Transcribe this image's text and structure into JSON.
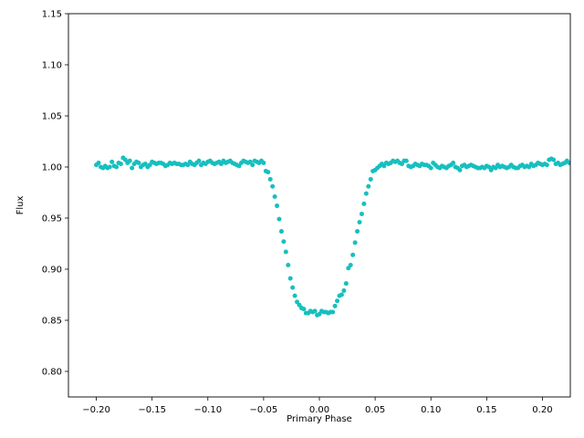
{
  "chart_data": {
    "type": "scatter",
    "title": "",
    "xlabel": "Primary Phase",
    "ylabel": "Flux",
    "xlim": [
      -0.225,
      0.225
    ],
    "ylim": [
      0.775,
      1.15
    ],
    "xticks": [
      -0.2,
      -0.15,
      -0.1,
      -0.05,
      0.0,
      0.05,
      0.1,
      0.15,
      0.2
    ],
    "xtick_labels": [
      "−0.20",
      "−0.15",
      "−0.10",
      "−0.05",
      "0.00",
      "0.05",
      "0.10",
      "0.15",
      "0.20"
    ],
    "yticks": [
      0.8,
      0.85,
      0.9,
      0.95,
      1.0,
      1.05,
      1.1,
      1.15
    ],
    "ytick_labels": [
      "0.80",
      "0.85",
      "0.90",
      "0.95",
      "1.00",
      "1.05",
      "1.10",
      "1.15"
    ],
    "grid": false,
    "series": [
      {
        "color": "#17bfbf",
        "points": [
          [
            -0.2,
            1.002
          ],
          [
            -0.198,
            1.004
          ],
          [
            -0.196,
            1.0
          ],
          [
            -0.194,
            0.999
          ],
          [
            -0.192,
            1.001
          ],
          [
            -0.19,
            0.999
          ],
          [
            -0.188,
            1.0
          ],
          [
            -0.186,
            1.005
          ],
          [
            -0.184,
            1.001
          ],
          [
            -0.182,
            1.0
          ],
          [
            -0.18,
            1.004
          ],
          [
            -0.178,
            1.003
          ],
          [
            -0.176,
            1.009
          ],
          [
            -0.174,
            1.007
          ],
          [
            -0.172,
            1.004
          ],
          [
            -0.17,
            1.006
          ],
          [
            -0.168,
            0.999
          ],
          [
            -0.166,
            1.003
          ],
          [
            -0.164,
            1.005
          ],
          [
            -0.162,
            1.004
          ],
          [
            -0.16,
            1.0
          ],
          [
            -0.158,
            1.002
          ],
          [
            -0.156,
            1.003
          ],
          [
            -0.154,
            1.0
          ],
          [
            -0.152,
            1.002
          ],
          [
            -0.15,
            1.005
          ],
          [
            -0.148,
            1.004
          ],
          [
            -0.146,
            1.003
          ],
          [
            -0.144,
            1.004
          ],
          [
            -0.142,
            1.004
          ],
          [
            -0.14,
            1.003
          ],
          [
            -0.138,
            1.001
          ],
          [
            -0.136,
            1.002
          ],
          [
            -0.134,
            1.004
          ],
          [
            -0.132,
            1.003
          ],
          [
            -0.13,
            1.004
          ],
          [
            -0.128,
            1.003
          ],
          [
            -0.126,
            1.003
          ],
          [
            -0.124,
            1.002
          ],
          [
            -0.122,
            1.002
          ],
          [
            -0.12,
            1.003
          ],
          [
            -0.118,
            1.002
          ],
          [
            -0.116,
            1.005
          ],
          [
            -0.114,
            1.003
          ],
          [
            -0.112,
            1.002
          ],
          [
            -0.11,
            1.004
          ],
          [
            -0.108,
            1.006
          ],
          [
            -0.106,
            1.002
          ],
          [
            -0.104,
            1.004
          ],
          [
            -0.102,
            1.003
          ],
          [
            -0.1,
            1.005
          ],
          [
            -0.098,
            1.006
          ],
          [
            -0.096,
            1.004
          ],
          [
            -0.094,
            1.003
          ],
          [
            -0.092,
            1.004
          ],
          [
            -0.09,
            1.005
          ],
          [
            -0.088,
            1.003
          ],
          [
            -0.086,
            1.006
          ],
          [
            -0.084,
            1.004
          ],
          [
            -0.082,
            1.005
          ],
          [
            -0.08,
            1.006
          ],
          [
            -0.078,
            1.004
          ],
          [
            -0.076,
            1.003
          ],
          [
            -0.074,
            1.002
          ],
          [
            -0.072,
            1.001
          ],
          [
            -0.07,
            1.004
          ],
          [
            -0.068,
            1.006
          ],
          [
            -0.066,
            1.005
          ],
          [
            -0.064,
            1.004
          ],
          [
            -0.062,
            1.005
          ],
          [
            -0.06,
            1.002
          ],
          [
            -0.058,
            1.006
          ],
          [
            -0.056,
            1.005
          ],
          [
            -0.054,
            1.004
          ],
          [
            -0.052,
            1.006
          ],
          [
            -0.05,
            1.004
          ],
          [
            -0.048,
            0.996
          ],
          [
            -0.046,
            0.995
          ],
          [
            -0.044,
            0.988
          ],
          [
            -0.042,
            0.981
          ],
          [
            -0.04,
            0.971
          ],
          [
            -0.038,
            0.962
          ],
          [
            -0.036,
            0.949
          ],
          [
            -0.034,
            0.937
          ],
          [
            -0.032,
            0.927
          ],
          [
            -0.03,
            0.917
          ],
          [
            -0.028,
            0.904
          ],
          [
            -0.026,
            0.891
          ],
          [
            -0.024,
            0.882
          ],
          [
            -0.022,
            0.874
          ],
          [
            -0.02,
            0.868
          ],
          [
            -0.018,
            0.865
          ],
          [
            -0.016,
            0.862
          ],
          [
            -0.014,
            0.861
          ],
          [
            -0.012,
            0.857
          ],
          [
            -0.01,
            0.857
          ],
          [
            -0.008,
            0.859
          ],
          [
            -0.006,
            0.858
          ],
          [
            -0.004,
            0.859
          ],
          [
            -0.002,
            0.855
          ],
          [
            0.0,
            0.856
          ],
          [
            0.002,
            0.859
          ],
          [
            0.004,
            0.858
          ],
          [
            0.006,
            0.858
          ],
          [
            0.008,
            0.857
          ],
          [
            0.01,
            0.858
          ],
          [
            0.012,
            0.858
          ],
          [
            0.014,
            0.864
          ],
          [
            0.016,
            0.869
          ],
          [
            0.018,
            0.874
          ],
          [
            0.02,
            0.875
          ],
          [
            0.022,
            0.879
          ],
          [
            0.024,
            0.886
          ],
          [
            0.026,
            0.901
          ],
          [
            0.028,
            0.904
          ],
          [
            0.03,
            0.914
          ],
          [
            0.032,
            0.926
          ],
          [
            0.034,
            0.937
          ],
          [
            0.036,
            0.946
          ],
          [
            0.038,
            0.954
          ],
          [
            0.04,
            0.964
          ],
          [
            0.042,
            0.974
          ],
          [
            0.044,
            0.981
          ],
          [
            0.046,
            0.988
          ],
          [
            0.048,
            0.996
          ],
          [
            0.05,
            0.997
          ],
          [
            0.052,
            0.999
          ],
          [
            0.054,
            1.001
          ],
          [
            0.056,
            1.003
          ],
          [
            0.058,
            1.001
          ],
          [
            0.06,
            1.004
          ],
          [
            0.062,
            1.003
          ],
          [
            0.064,
            1.004
          ],
          [
            0.066,
            1.006
          ],
          [
            0.068,
            1.005
          ],
          [
            0.07,
            1.006
          ],
          [
            0.072,
            1.004
          ],
          [
            0.074,
            1.003
          ],
          [
            0.076,
            1.006
          ],
          [
            0.078,
            1.006
          ],
          [
            0.08,
            1.001
          ],
          [
            0.082,
            1.0
          ],
          [
            0.084,
            1.001
          ],
          [
            0.086,
            1.003
          ],
          [
            0.088,
            1.002
          ],
          [
            0.09,
            1.001
          ],
          [
            0.092,
            1.003
          ],
          [
            0.094,
            1.002
          ],
          [
            0.096,
            1.002
          ],
          [
            0.098,
            1.001
          ],
          [
            0.1,
            0.999
          ],
          [
            0.102,
            1.004
          ],
          [
            0.104,
            1.002
          ],
          [
            0.106,
            1.0
          ],
          [
            0.108,
            0.999
          ],
          [
            0.11,
            1.001
          ],
          [
            0.112,
            1.0
          ],
          [
            0.114,
            0.999
          ],
          [
            0.116,
            1.001
          ],
          [
            0.118,
            1.002
          ],
          [
            0.12,
            1.004
          ],
          [
            0.122,
            1.0
          ],
          [
            0.124,
            0.999
          ],
          [
            0.126,
            0.997
          ],
          [
            0.128,
            1.001
          ],
          [
            0.13,
            1.002
          ],
          [
            0.132,
            1.0
          ],
          [
            0.134,
            1.001
          ],
          [
            0.136,
            1.002
          ],
          [
            0.138,
            1.001
          ],
          [
            0.14,
            1.0
          ],
          [
            0.142,
            0.999
          ],
          [
            0.144,
            0.999
          ],
          [
            0.146,
            1.0
          ],
          [
            0.148,
            0.999
          ],
          [
            0.15,
            1.001
          ],
          [
            0.152,
            1.0
          ],
          [
            0.154,
            0.997
          ],
          [
            0.156,
            1.0
          ],
          [
            0.158,
            0.999
          ],
          [
            0.16,
            1.002
          ],
          [
            0.162,
            1.0
          ],
          [
            0.164,
            1.001
          ],
          [
            0.166,
            1.0
          ],
          [
            0.168,
            0.999
          ],
          [
            0.17,
            1.0
          ],
          [
            0.172,
            1.002
          ],
          [
            0.174,
            1.0
          ],
          [
            0.176,
            0.999
          ],
          [
            0.178,
            0.999
          ],
          [
            0.18,
            1.001
          ],
          [
            0.182,
            1.002
          ],
          [
            0.184,
            1.0
          ],
          [
            0.186,
            1.001
          ],
          [
            0.188,
            1.0
          ],
          [
            0.19,
            1.003
          ],
          [
            0.192,
            1.001
          ],
          [
            0.194,
            1.002
          ],
          [
            0.196,
            1.004
          ],
          [
            0.198,
            1.003
          ],
          [
            0.2,
            1.002
          ],
          [
            0.202,
            1.003
          ],
          [
            0.204,
            1.002
          ],
          [
            0.206,
            1.007
          ],
          [
            0.208,
            1.008
          ],
          [
            0.21,
            1.007
          ],
          [
            0.212,
            1.003
          ],
          [
            0.214,
            1.004
          ],
          [
            0.216,
            1.002
          ],
          [
            0.218,
            1.003
          ],
          [
            0.22,
            1.004
          ],
          [
            0.222,
            1.006
          ],
          [
            0.224,
            1.004
          ]
        ]
      }
    ]
  }
}
